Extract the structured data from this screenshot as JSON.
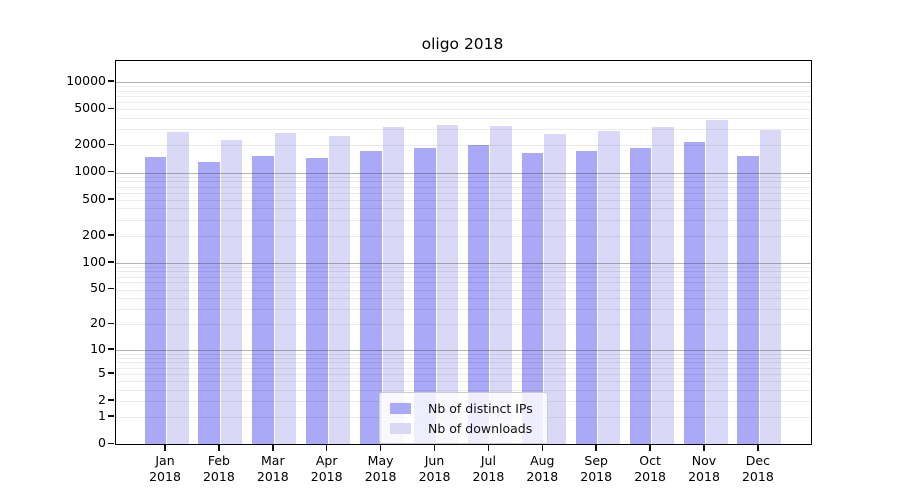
{
  "chart_data": {
    "type": "bar",
    "title": "oligo 2018",
    "categories": [
      "Jan",
      "Feb",
      "Mar",
      "Apr",
      "May",
      "Jun",
      "Jul",
      "Aug",
      "Sep",
      "Oct",
      "Nov",
      "Dec"
    ],
    "category_year": "2018",
    "series": [
      {
        "name": "Nb of distinct IPs",
        "color": "#a9a9f7",
        "values": [
          1500,
          1310,
          1520,
          1450,
          1740,
          1880,
          2020,
          1640,
          1710,
          1850,
          2200,
          1510
        ]
      },
      {
        "name": "Nb of downloads",
        "color": "#d9d9f7",
        "values": [
          2800,
          2300,
          2750,
          2530,
          3210,
          3350,
          3300,
          2690,
          2860,
          3150,
          3770,
          2970
        ]
      }
    ],
    "y_axis": {
      "scale": "log10(v+1)",
      "tick_values": [
        0,
        1,
        2,
        5,
        10,
        20,
        50,
        100,
        200,
        500,
        1000,
        2000,
        5000,
        10000
      ],
      "major_grid_values": [
        10,
        100,
        1000,
        10000
      ],
      "minor_grid_base": [
        1,
        2,
        3,
        4,
        5,
        6,
        7,
        8,
        9
      ],
      "ylim": [
        0,
        17000
      ]
    },
    "legend_position": "lower center",
    "grid": "on"
  }
}
